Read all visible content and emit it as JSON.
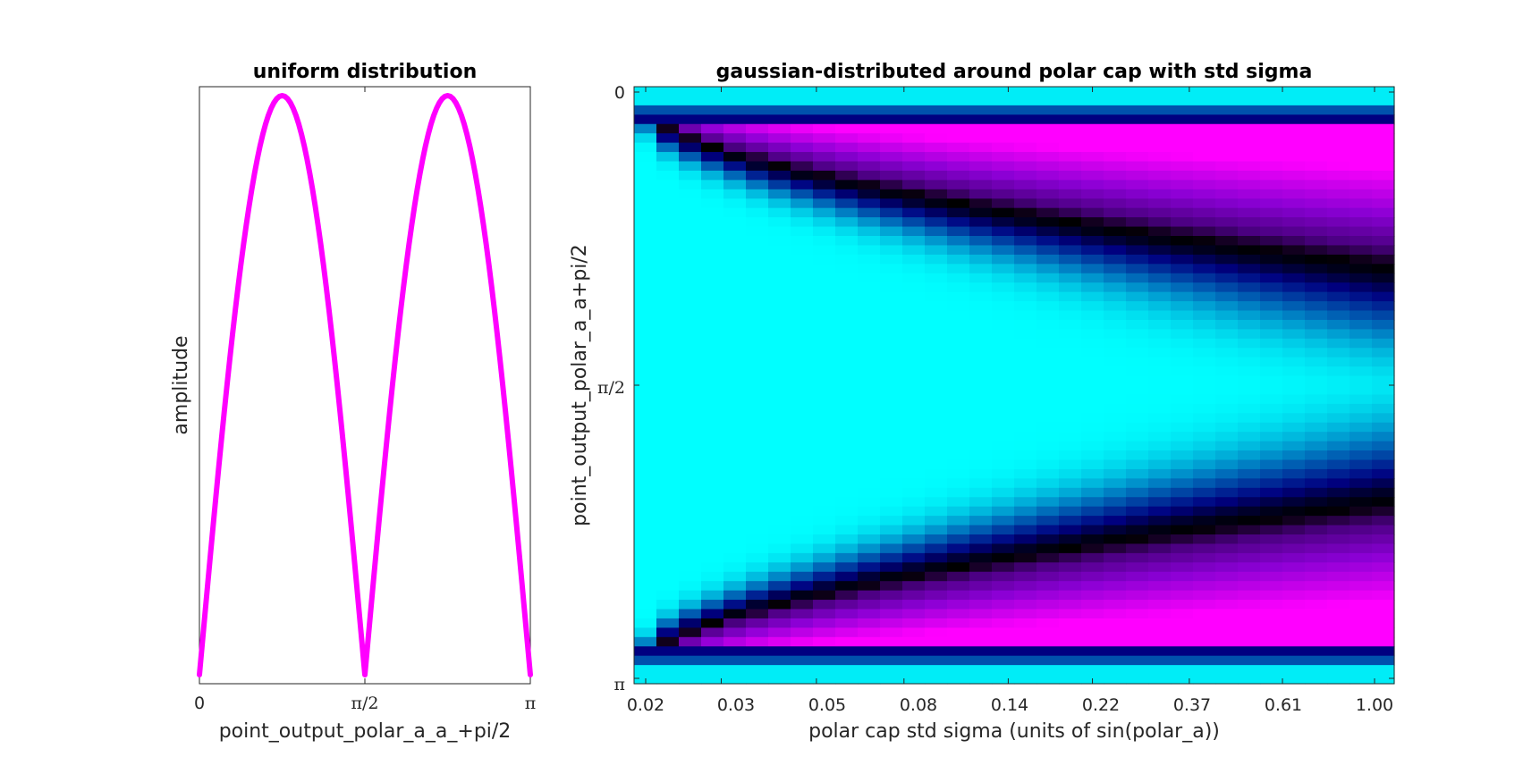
{
  "chart_data": [
    {
      "type": "line",
      "title": "uniform distribution",
      "xlabel": "point_output_polar_a_a_+pi/2",
      "ylabel": "amplitude",
      "xlim": [
        0,
        3.14159
      ],
      "ylim": [
        0,
        1
      ],
      "xtick_values": [
        0,
        1.5708,
        3.14159
      ],
      "xtick_labels": [
        "0",
        "π/2",
        "π"
      ],
      "series": [
        {
          "name": "amplitude",
          "color": "#ff00ff",
          "function": "abs(sin(2*x))",
          "samples": 121
        }
      ]
    },
    {
      "type": "heatmap",
      "title": "gaussian-distributed around polar cap with std sigma",
      "xlabel": "polar cap std sigma (units of sin(polar_a))",
      "ylabel": "point_output_polar_a_a+pi/2",
      "x_range": [
        0.02,
        1.0
      ],
      "x_scale": "log",
      "n_columns": 34,
      "n_rows": 64,
      "xtick_labels": [
        "0.02",
        "0.03",
        "0.05",
        "0.08",
        "0.14",
        "0.22",
        "0.37",
        "0.61",
        "1.00"
      ],
      "xtick_values": [
        0.02,
        0.03,
        0.05,
        0.08,
        0.14,
        0.22,
        0.37,
        0.61,
        1.0
      ],
      "ytick_labels": [
        "0",
        "π/2",
        "π"
      ],
      "ytick_values": [
        0,
        1.5708,
        3.14159
      ],
      "ylim": [
        0,
        3.14159
      ],
      "colormap": [
        "#00ffff",
        "#0072bd",
        "#000080",
        "#000000",
        "#4b0082",
        "#8a00d4",
        "#ff00ff"
      ]
    }
  ]
}
